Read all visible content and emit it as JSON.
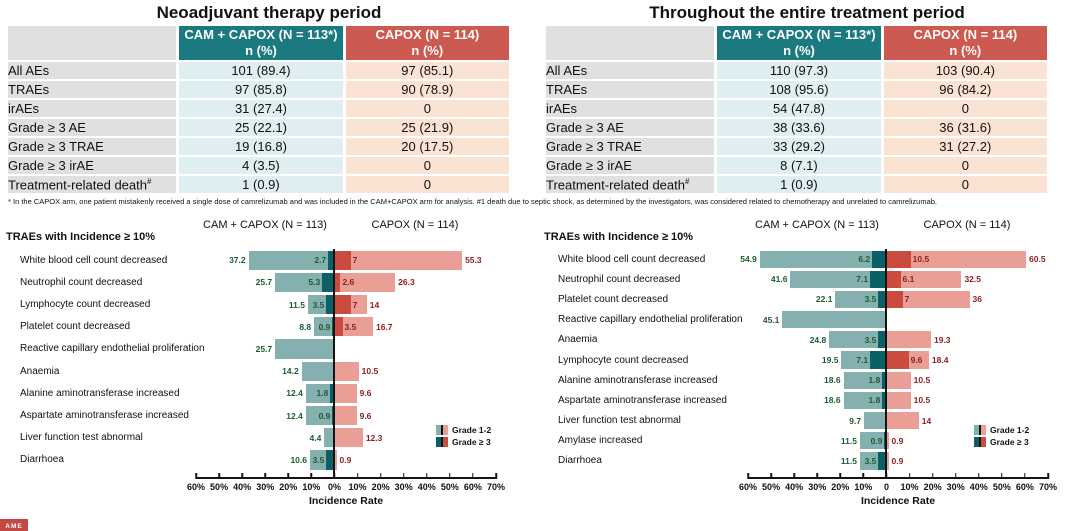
{
  "colors": {
    "teal_header": "#1a7a80",
    "red_header": "#cd5a50",
    "teal_cell": "#dfeef0",
    "peach_cell": "#fbe3d4",
    "gray_cell": "#e0e0e0",
    "teal_light": "#85b0b0",
    "teal_dark": "#0b5f66",
    "red_light": "#e99e96",
    "red_dark": "#cb4b3f",
    "val_green": "#1c5c31",
    "val_red": "#8e2020"
  },
  "panels": [
    {
      "title": "Neoadjuvant therapy period",
      "table": {
        "header": {
          "cam_line1": "CAM + CAPOX (N = 113*)",
          "cam_line2": "n (%)",
          "capox_line1": "CAPOX (N = 114)",
          "capox_line2": "n (%)"
        },
        "rows": [
          {
            "label": "All AEs",
            "cam": "101 (89.4)",
            "capox": "97 (85.1)"
          },
          {
            "label": "TRAEs",
            "cam": "97 (85.8)",
            "capox": "90 (78.9)"
          },
          {
            "label": "irAEs",
            "cam": "31 (27.4)",
            "capox": "0"
          },
          {
            "label": "Grade ≥ 3  AE",
            "cam": "25 (22.1)",
            "capox": "25 (21.9)"
          },
          {
            "label": "Grade ≥ 3  TRAE",
            "cam": "19 (16.8)",
            "capox": "20 (17.5)"
          },
          {
            "label": "Grade ≥ 3  irAE",
            "cam": "4 (3.5)",
            "capox": "0"
          },
          {
            "label": "Treatment-related death",
            "sup": "#",
            "cam": "1 (0.9)",
            "capox": "0"
          }
        ]
      }
    },
    {
      "title": "Throughout the entire treatment period",
      "table": {
        "header": {
          "cam_line1": "CAM + CAPOX (N = 113*)",
          "cam_line2": "n (%)",
          "capox_line1": "CAPOX (N = 114)",
          "capox_line2": "n (%)"
        },
        "rows": [
          {
            "label": "All AEs",
            "cam": "110 (97.3)",
            "capox": "103 (90.4)"
          },
          {
            "label": "TRAEs",
            "cam": "108 (95.6)",
            "capox": "96 (84.2)"
          },
          {
            "label": "irAEs",
            "cam": "54 (47.8)",
            "capox": "0"
          },
          {
            "label": "Grade ≥ 3  AE",
            "cam": "38 (33.6)",
            "capox": "36 (31.6)"
          },
          {
            "label": "Grade ≥ 3  TRAE",
            "cam": "33 (29.2)",
            "capox": "31 (27.2)"
          },
          {
            "label": "Grade ≥ 3  irAE",
            "cam": "8 (7.1)",
            "capox": "0"
          },
          {
            "label": "Treatment-related death",
            "sup": "#",
            "cam": "1 (0.9)",
            "capox": "0"
          }
        ]
      }
    }
  ],
  "footnote": "* In the CAPOX arm, one patient mistakenly received a single dose of camrelizumab and was included in the CAM+CAPOX arm for analysis.  #1 death due to septic shock, as determined by the investigators, was considered related to chemotherapy and unrelated to camrelizumab.",
  "chart_data": [
    {
      "type": "bar",
      "orientation": "diverging-horizontal",
      "section_label": "TRAEs with Incidence ≥ 10%",
      "title_left": "CAM + CAPOX  (N = 113)",
      "title_right": "CAPOX  (N = 114)",
      "xlabel": "Incidence Rate",
      "xlim_left_pct": 60,
      "xlim_right_pct": 70,
      "axis_ticks": [
        "60%",
        "50%",
        "40%",
        "30%",
        "20%",
        "10%",
        "0%",
        "10%",
        "20%",
        "30%",
        "40%",
        "50%",
        "60%",
        "70%"
      ],
      "legend": [
        "Grade 1-2",
        "Grade ≥ 3"
      ],
      "rows": [
        {
          "label": "White blood cell count decreased",
          "cam_total": 37.2,
          "cam_g3": 2.7,
          "capox_g3": 7,
          "capox_total": 55.3
        },
        {
          "label": "Neutrophil count decreased",
          "cam_total": 25.7,
          "cam_g3": 5.3,
          "capox_g3": 2.6,
          "capox_total": 26.3
        },
        {
          "label": "Lymphocyte count decreased",
          "cam_total": 11.5,
          "cam_g3": 3.5,
          "capox_g3": 7,
          "capox_total": 14
        },
        {
          "label": "Platelet count decreased",
          "cam_total": 8.8,
          "cam_g3": 0.9,
          "capox_g3": 3.5,
          "capox_total": 16.7
        },
        {
          "label": "Reactive capillary endothelial proliferation",
          "cam_total": 25.7,
          "cam_g3": null,
          "capox_g3": null,
          "capox_total": null
        },
        {
          "label": "Anaemia",
          "cam_total": 14.2,
          "cam_g3": null,
          "capox_g3": null,
          "capox_total": 10.5
        },
        {
          "label": "Alanine aminotransferase increased",
          "cam_total": 12.4,
          "cam_g3": 1.8,
          "capox_g3": null,
          "capox_total": 9.6
        },
        {
          "label": "Aspartate aminotransferase increased",
          "cam_total": 12.4,
          "cam_g3": 0.9,
          "capox_g3": null,
          "capox_total": 9.6
        },
        {
          "label": "Liver function test abnormal",
          "cam_total": 4.4,
          "cam_g3": null,
          "capox_g3": null,
          "capox_total": 12.3
        },
        {
          "label": "Diarrhoea",
          "cam_total": 10.6,
          "cam_g3": 3.5,
          "capox_g3": null,
          "capox_total": 0.9
        }
      ]
    },
    {
      "type": "bar",
      "orientation": "diverging-horizontal",
      "section_label": "TRAEs with Incidence ≥ 10%",
      "title_left": "CAM + CAPOX  (N = 113)",
      "title_right": "CAPOX  (N = 114)",
      "xlabel": "Incidence Rate",
      "xlim_left_pct": 60,
      "xlim_right_pct": 70,
      "axis_ticks": [
        "60%",
        "50%",
        "40%",
        "30%",
        "20%",
        "10%",
        "0",
        "10%",
        "20%",
        "30%",
        "40%",
        "50%",
        "60%",
        "70%"
      ],
      "legend": [
        "Grade 1-2",
        "Grade ≥ 3"
      ],
      "rows": [
        {
          "label": "White blood cell count decreased",
          "cam_total": 54.9,
          "cam_g3": 6.2,
          "capox_g3": 10.5,
          "capox_total": 60.5
        },
        {
          "label": "Neutrophil count decreased",
          "cam_total": 41.6,
          "cam_g3": 7.1,
          "capox_g3": 6.1,
          "capox_total": 32.5
        },
        {
          "label": "Platelet count decreased",
          "cam_total": 22.1,
          "cam_g3": 3.5,
          "capox_g3": 7,
          "capox_total": 36
        },
        {
          "label": "Reactive capillary endothelial proliferation",
          "cam_total": 45.1,
          "cam_g3": null,
          "capox_g3": null,
          "capox_total": null
        },
        {
          "label": "Anaemia",
          "cam_total": 24.8,
          "cam_g3": 3.5,
          "capox_g3": null,
          "capox_total": 19.3
        },
        {
          "label": "Lymphocyte count decreased",
          "cam_total": 19.5,
          "cam_g3": 7.1,
          "capox_g3": 9.6,
          "capox_total": 18.4
        },
        {
          "label": "Alanine aminotransferase increased",
          "cam_total": 18.6,
          "cam_g3": 1.8,
          "capox_g3": null,
          "capox_total": 10.5
        },
        {
          "label": "Aspartate aminotransferase increased",
          "cam_total": 18.6,
          "cam_g3": 1.8,
          "capox_g3": null,
          "capox_total": 10.5
        },
        {
          "label": "Liver function test abnormal",
          "cam_total": 9.7,
          "cam_g3": null,
          "capox_g3": null,
          "capox_total": 14
        },
        {
          "label": "Amylase increased",
          "cam_total": 11.5,
          "cam_g3": 0.9,
          "capox_g3": null,
          "capox_total": 0.9
        },
        {
          "label": "Diarrhoea",
          "cam_total": 11.5,
          "cam_g3": 3.5,
          "capox_g3": null,
          "capox_total": 0.9
        }
      ]
    }
  ],
  "logo_text": "AME"
}
